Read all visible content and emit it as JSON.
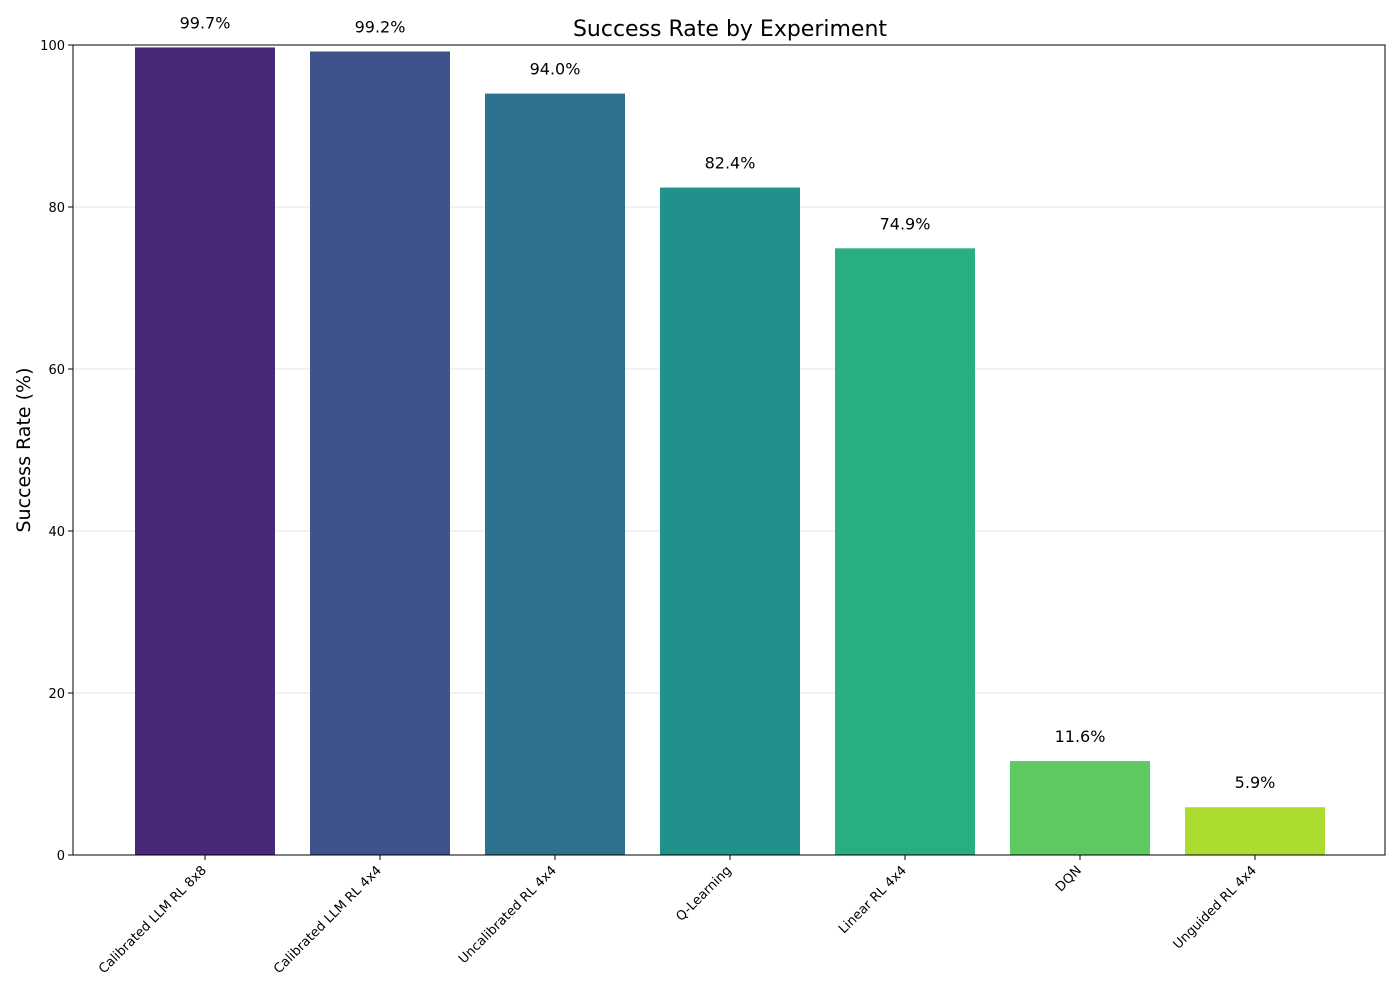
{
  "chart_data": {
    "type": "bar",
    "title": "Success Rate by Experiment",
    "xlabel": "",
    "ylabel": "Success Rate (%)",
    "ylim": [
      0,
      100
    ],
    "yticks": [
      0,
      20,
      40,
      60,
      80,
      100
    ],
    "grid": "y",
    "categories": [
      "Calibrated LLM RL 8x8",
      "Calibrated LLM RL 4x4",
      "Uncalibrated RL 4x4",
      "Q-Learning",
      "Linear RL 4x4",
      "DQN",
      "Unguided RL 4x4"
    ],
    "values": [
      99.7,
      99.2,
      94.0,
      82.4,
      74.9,
      11.6,
      5.9
    ],
    "value_labels": [
      "99.7%",
      "99.2%",
      "94.0%",
      "82.4%",
      "74.9%",
      "11.6%",
      "5.9%"
    ],
    "colors": [
      "#482878",
      "#3e528b",
      "#2d718e",
      "#21918c",
      "#29ae80",
      "#5ec962",
      "#addc30"
    ]
  }
}
